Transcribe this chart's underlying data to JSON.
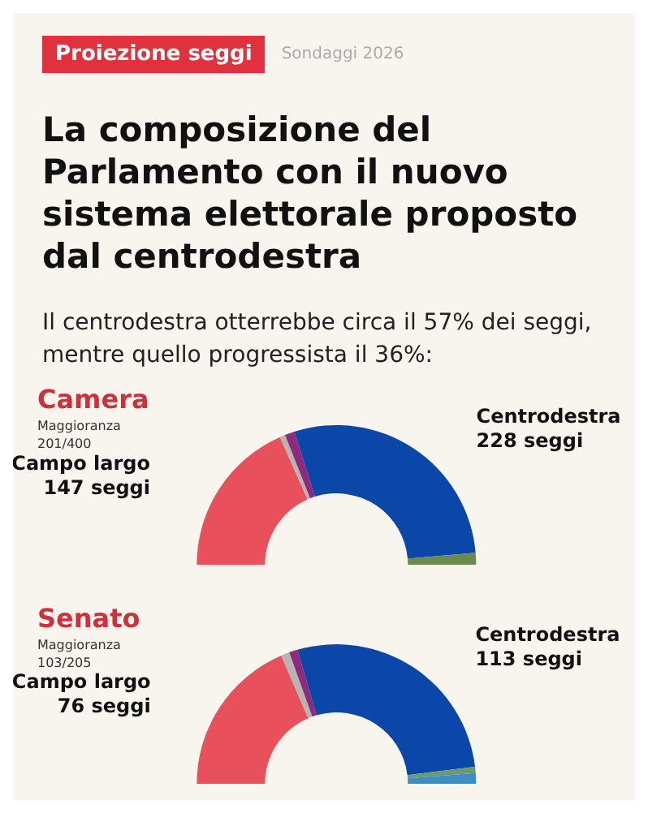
{
  "chart_data": [
    {
      "type": "other",
      "title": "La composizione del Parlamento con il nuovo sistema elettorale proposto dal centrodestra",
      "subtitle": "Il centrodestra otterrebbe circa il 57% dei seggi, mentre quello progressista il 36%:",
      "annotations": [
        "Proiezione seggi",
        "Sondaggi 2026"
      ]
    },
    {
      "type": "donut",
      "title": "Camera",
      "subtitle": "Maggioranza\n201/400",
      "categories": [
        "Campo largo",
        null,
        null,
        "Centrodestra",
        null
      ],
      "values": [
        147,
        5,
        9,
        228,
        11
      ],
      "colors": [
        "#e8505b",
        "#b9b4b4",
        "#8e2a7c",
        "#0a47a8",
        "#6b8a4e"
      ],
      "value_labels": [
        "147 seggi",
        null,
        null,
        "228 seggi",
        null
      ],
      "legend": false
    },
    {
      "type": "donut",
      "title": "Senato",
      "subtitle": "Maggioranza\n103/205",
      "categories": [
        "Campo largo",
        null,
        null,
        "Centrodestra",
        null,
        null
      ],
      "values": [
        76,
        4,
        4,
        113,
        3,
        5
      ],
      "colors": [
        "#e8505b",
        "#b9b4b4",
        "#8e2a7c",
        "#0a47a8",
        "#6b9a6e",
        "#3b8fc4"
      ],
      "value_labels": [
        "76 seggi",
        null,
        null,
        "113 seggi",
        null,
        null
      ],
      "legend": false
    }
  ]
}
